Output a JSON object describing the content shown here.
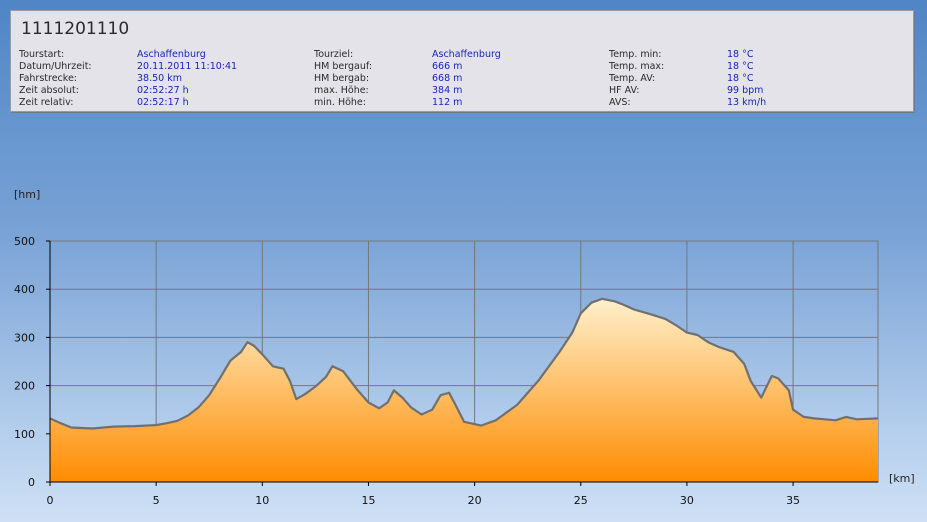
{
  "tour": {
    "title": "1111201110",
    "columns": [
      [
        {
          "label": "Tourstart:",
          "value": "Aschaffenburg"
        },
        {
          "label": "Datum/Uhrzeit:",
          "value": "20.11.2011 11:10:41"
        },
        {
          "label": "Fahrstrecke:",
          "value": "38.50 km"
        },
        {
          "label": "Zeit absolut:",
          "value": "02:52:27 h"
        },
        {
          "label": "Zeit relativ:",
          "value": "02:52:17 h"
        }
      ],
      [
        {
          "label": "Tourziel:",
          "value": "Aschaffenburg"
        },
        {
          "label": "HM bergauf:",
          "value": "666 m"
        },
        {
          "label": "HM bergab:",
          "value": "668 m"
        },
        {
          "label": "max. Höhe:",
          "value": "384 m"
        },
        {
          "label": "min. Höhe:",
          "value": "112 m"
        }
      ],
      [
        {
          "label": "Temp. min:",
          "value": "18 °C"
        },
        {
          "label": "Temp. max:",
          "value": "18 °C"
        },
        {
          "label": "Temp. AV:",
          "value": "18 °C"
        },
        {
          "label": "HF AV:",
          "value": "99 bpm"
        },
        {
          "label": "AVS:",
          "value": "13 km/h"
        }
      ]
    ]
  },
  "colors": {
    "fill_top": "#fff0cc",
    "fill_bottom": "#ff8c00",
    "line": "#707070",
    "grid": "#777777"
  },
  "chart_data": {
    "type": "area",
    "xlabel": "[km]",
    "ylabel": "[hm]",
    "xlim": [
      0,
      39
    ],
    "ylim": [
      0,
      500
    ],
    "xticks": [
      0,
      5,
      10,
      15,
      20,
      25,
      30,
      35
    ],
    "yticks": [
      0,
      100,
      200,
      300,
      400,
      500
    ],
    "grid": true,
    "series": [
      {
        "x": [
          0,
          0.5,
          1,
          2,
          3,
          4,
          5,
          5.5,
          6,
          6.5,
          7,
          7.5,
          8,
          8.5,
          9,
          9.3,
          9.6,
          10,
          10.5,
          11,
          11.3,
          11.6,
          12,
          12.5,
          13,
          13.3,
          13.8,
          14.5,
          15,
          15.5,
          15.9,
          16.2,
          16.6,
          17,
          17.5,
          18,
          18.4,
          18.8,
          19.1,
          19.5,
          19.8,
          20.3,
          21,
          22,
          23,
          24,
          24.6,
          25,
          25.5,
          26,
          26.6,
          27,
          27.5,
          28.3,
          29,
          29.5,
          30,
          30.5,
          31,
          31.5,
          32.2,
          32.7,
          33,
          33.5,
          34,
          34.3,
          34.8,
          35,
          35.5,
          36,
          36.5,
          37,
          37.5,
          38,
          39
        ],
        "y": [
          132,
          122,
          113,
          111,
          115,
          116,
          118,
          122,
          127,
          138,
          155,
          180,
          215,
          252,
          270,
          290,
          283,
          265,
          240,
          235,
          210,
          172,
          182,
          198,
          218,
          240,
          230,
          190,
          165,
          153,
          165,
          190,
          175,
          155,
          140,
          150,
          180,
          185,
          160,
          125,
          122,
          117,
          128,
          160,
          210,
          270,
          310,
          350,
          372,
          380,
          375,
          368,
          358,
          348,
          338,
          325,
          310,
          305,
          290,
          280,
          270,
          245,
          210,
          175,
          220,
          215,
          190,
          150,
          135,
          132,
          130,
          128,
          135,
          130,
          132
        ]
      }
    ]
  }
}
